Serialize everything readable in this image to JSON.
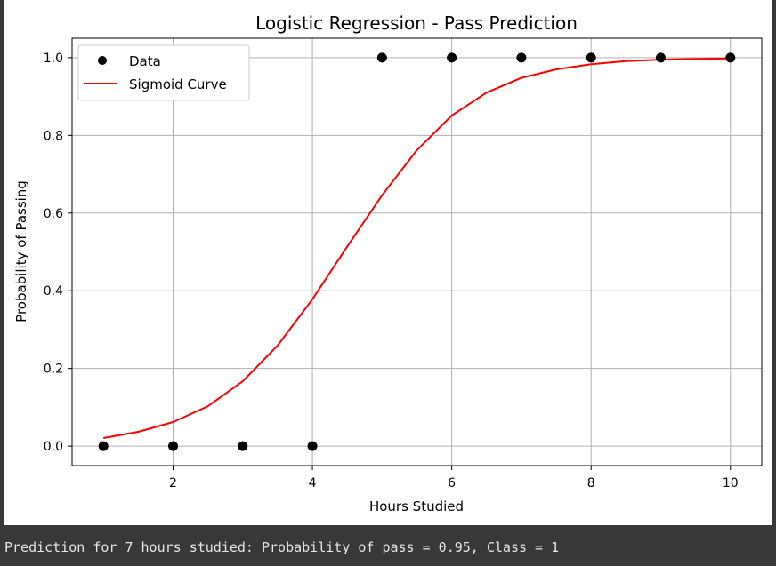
{
  "chart_data": {
    "type": "scatter",
    "title": "Logistic Regression - Pass Prediction",
    "xlabel": "Hours Studied",
    "ylabel": "Probability of Passing",
    "xlim": [
      0.55,
      10.45
    ],
    "ylim": [
      -0.05,
      1.05
    ],
    "xticks": [
      2,
      4,
      6,
      8,
      10
    ],
    "yticks": [
      0.0,
      0.2,
      0.4,
      0.6,
      0.8,
      1.0
    ],
    "xtick_labels": [
      "2",
      "4",
      "6",
      "8",
      "10"
    ],
    "ytick_labels": [
      "0.0",
      "0.2",
      "0.4",
      "0.6",
      "0.8",
      "1.0"
    ],
    "grid": true,
    "legend_position": "upper-left",
    "series": [
      {
        "name": "Data",
        "kind": "scatter",
        "color": "#000000",
        "x": [
          1,
          2,
          3,
          4,
          5,
          6,
          7,
          8,
          9,
          10
        ],
        "y": [
          0,
          0,
          0,
          0,
          1,
          1,
          1,
          1,
          1,
          1
        ]
      },
      {
        "name": "Sigmoid Curve",
        "kind": "line",
        "color": "#ff0000",
        "x": [
          1.0,
          1.5,
          2.0,
          2.5,
          3.0,
          3.5,
          4.0,
          4.5,
          5.0,
          5.5,
          6.0,
          6.5,
          7.0,
          7.5,
          8.0,
          8.5,
          9.0,
          9.5,
          10.0
        ],
        "y": [
          0.021,
          0.037,
          0.062,
          0.103,
          0.167,
          0.259,
          0.378,
          0.514,
          0.646,
          0.762,
          0.851,
          0.91,
          0.948,
          0.97,
          0.983,
          0.991,
          0.995,
          0.997,
          0.998
        ]
      }
    ]
  },
  "console": {
    "output": "Prediction for 7 hours studied: Probability of pass = 0.95, Class = 1"
  }
}
